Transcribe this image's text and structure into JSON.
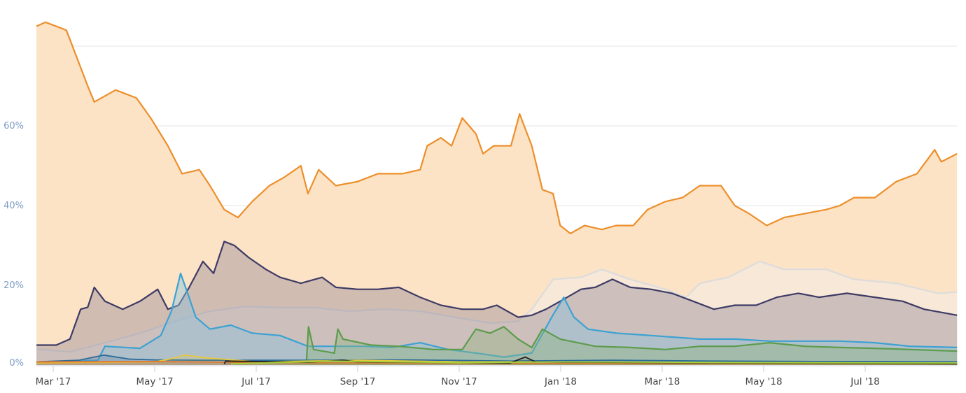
{
  "chart_data": {
    "type": "area",
    "title": "",
    "xlabel": "",
    "ylabel": "",
    "x_unit": "months since Mar 2017",
    "xlim": [
      -0.33,
      17.81
    ],
    "ylim": [
      0,
      88
    ],
    "grid": true,
    "y_ticks": [
      {
        "value": 0,
        "label": "0%"
      },
      {
        "value": 20,
        "label": "20%"
      },
      {
        "value": 40,
        "label": "40%"
      },
      {
        "value": 60,
        "label": "60%"
      },
      {
        "value": 80,
        "label": ""
      }
    ],
    "x_ticks": [
      {
        "value": 0,
        "label": "Mar '17"
      },
      {
        "value": 2,
        "label": "May '17"
      },
      {
        "value": 4,
        "label": "Jul '17"
      },
      {
        "value": 6,
        "label": "Sep '17"
      },
      {
        "value": 8,
        "label": "Nov '17"
      },
      {
        "value": 10,
        "label": "Jan '18"
      },
      {
        "value": 12,
        "label": "Mar '18"
      },
      {
        "value": 14,
        "label": "May '18"
      },
      {
        "value": 16,
        "label": "Jul '18"
      }
    ],
    "series": [
      {
        "name": "series-orange",
        "line": "#ec8f2b",
        "fill": "#fce3c6",
        "fillOpacity": 1,
        "points": [
          [
            -0.33,
            85
          ],
          [
            -0.15,
            86
          ],
          [
            0.26,
            84
          ],
          [
            0.44,
            78
          ],
          [
            0.68,
            70
          ],
          [
            0.81,
            66
          ],
          [
            1.23,
            69
          ],
          [
            1.64,
            67
          ],
          [
            1.92,
            62
          ],
          [
            2.26,
            55
          ],
          [
            2.54,
            48
          ],
          [
            2.88,
            49
          ],
          [
            3.09,
            45
          ],
          [
            3.37,
            39
          ],
          [
            3.64,
            37
          ],
          [
            3.92,
            41
          ],
          [
            4.26,
            45
          ],
          [
            4.54,
            47
          ],
          [
            4.88,
            50
          ],
          [
            5.02,
            43
          ],
          [
            5.23,
            49
          ],
          [
            5.57,
            45
          ],
          [
            5.99,
            46
          ],
          [
            6.4,
            48
          ],
          [
            6.88,
            48
          ],
          [
            7.23,
            49
          ],
          [
            7.37,
            55
          ],
          [
            7.64,
            57
          ],
          [
            7.85,
            55
          ],
          [
            8.06,
            62
          ],
          [
            8.33,
            58
          ],
          [
            8.47,
            53
          ],
          [
            8.68,
            55
          ],
          [
            9.02,
            55
          ],
          [
            9.19,
            63
          ],
          [
            9.43,
            55
          ],
          [
            9.64,
            44
          ],
          [
            9.85,
            43
          ],
          [
            9.99,
            35
          ],
          [
            10.19,
            33
          ],
          [
            10.47,
            35
          ],
          [
            10.81,
            34
          ],
          [
            11.09,
            35
          ],
          [
            11.43,
            35
          ],
          [
            11.71,
            39
          ],
          [
            12.06,
            41
          ],
          [
            12.4,
            42
          ],
          [
            12.74,
            45
          ],
          [
            13.16,
            45
          ],
          [
            13.43,
            40
          ],
          [
            13.71,
            38
          ],
          [
            14.06,
            35
          ],
          [
            14.4,
            37
          ],
          [
            14.81,
            38
          ],
          [
            15.23,
            39
          ],
          [
            15.5,
            40
          ],
          [
            15.78,
            42
          ],
          [
            16.19,
            42
          ],
          [
            16.61,
            46
          ],
          [
            17.02,
            48
          ],
          [
            17.37,
            54
          ],
          [
            17.5,
            51
          ],
          [
            17.81,
            53
          ]
        ]
      },
      {
        "name": "series-light-grey",
        "line": "#dcdcdc",
        "fill": "#f3ede6",
        "fillOpacity": 0.55,
        "points": [
          [
            -0.33,
            4
          ],
          [
            0.33,
            3.3
          ],
          [
            1.02,
            5.6
          ],
          [
            1.71,
            8
          ],
          [
            2.4,
            11
          ],
          [
            3.09,
            13.5
          ],
          [
            3.78,
            14.7
          ],
          [
            4.47,
            14.4
          ],
          [
            5.16,
            14.4
          ],
          [
            5.85,
            13.5
          ],
          [
            6.54,
            14
          ],
          [
            7.23,
            13.5
          ],
          [
            7.92,
            12
          ],
          [
            8.61,
            10.5
          ],
          [
            9.16,
            11
          ],
          [
            9.43,
            14
          ],
          [
            9.85,
            21.5
          ],
          [
            10.4,
            22
          ],
          [
            10.81,
            24
          ],
          [
            11.37,
            21.5
          ],
          [
            12.06,
            19
          ],
          [
            12.47,
            17
          ],
          [
            12.74,
            20.5
          ],
          [
            13.3,
            22
          ],
          [
            13.92,
            26
          ],
          [
            14.4,
            24
          ],
          [
            15.23,
            24
          ],
          [
            15.78,
            21.5
          ],
          [
            16.61,
            20.5
          ],
          [
            17.43,
            18
          ],
          [
            17.81,
            18.3
          ]
        ]
      },
      {
        "name": "series-navy",
        "line": "#3d3b66",
        "fill": "#7a6d85",
        "fillOpacity": 0.33,
        "points": [
          [
            -0.33,
            5
          ],
          [
            0.06,
            5
          ],
          [
            0.33,
            6.5
          ],
          [
            0.54,
            14
          ],
          [
            0.68,
            14.5
          ],
          [
            0.81,
            19.5
          ],
          [
            1.02,
            16
          ],
          [
            1.37,
            14
          ],
          [
            1.71,
            16
          ],
          [
            2.06,
            19
          ],
          [
            2.26,
            14
          ],
          [
            2.47,
            15
          ],
          [
            2.68,
            19.5
          ],
          [
            2.95,
            26
          ],
          [
            3.16,
            23
          ],
          [
            3.37,
            31
          ],
          [
            3.57,
            30
          ],
          [
            3.85,
            27
          ],
          [
            4.19,
            24
          ],
          [
            4.47,
            22
          ],
          [
            4.88,
            20.5
          ],
          [
            5.3,
            22
          ],
          [
            5.57,
            19.5
          ],
          [
            5.99,
            19
          ],
          [
            6.4,
            19
          ],
          [
            6.81,
            19.5
          ],
          [
            7.23,
            17
          ],
          [
            7.64,
            15
          ],
          [
            8.06,
            14
          ],
          [
            8.47,
            14
          ],
          [
            8.74,
            15
          ],
          [
            9.16,
            12
          ],
          [
            9.43,
            12.5
          ],
          [
            9.71,
            14
          ],
          [
            9.99,
            16
          ],
          [
            10.4,
            19
          ],
          [
            10.68,
            19.5
          ],
          [
            11.02,
            21.5
          ],
          [
            11.37,
            19.5
          ],
          [
            11.78,
            19
          ],
          [
            12.19,
            18
          ],
          [
            12.61,
            16
          ],
          [
            13.02,
            14
          ],
          [
            13.43,
            15
          ],
          [
            13.85,
            15
          ],
          [
            14.26,
            17
          ],
          [
            14.68,
            18
          ],
          [
            15.09,
            17
          ],
          [
            15.64,
            18
          ],
          [
            16.19,
            17
          ],
          [
            16.74,
            16
          ],
          [
            17.16,
            14
          ],
          [
            17.81,
            12.5
          ]
        ]
      },
      {
        "name": "series-light-blue",
        "line": "#3ba2d2",
        "fill": "#8fc2dc",
        "fillOpacity": 0.45,
        "points": [
          [
            -0.33,
            0.7
          ],
          [
            0.88,
            1.2
          ],
          [
            1.02,
            4.7
          ],
          [
            1.71,
            4.2
          ],
          [
            2.12,
            7.4
          ],
          [
            2.33,
            13.5
          ],
          [
            2.51,
            23
          ],
          [
            2.65,
            18
          ],
          [
            2.81,
            12
          ],
          [
            3.09,
            9
          ],
          [
            3.5,
            10
          ],
          [
            3.92,
            8
          ],
          [
            4.47,
            7.4
          ],
          [
            5.02,
            4.7
          ],
          [
            5.57,
            4.7
          ],
          [
            6.12,
            4.7
          ],
          [
            6.68,
            4.4
          ],
          [
            7.23,
            5.6
          ],
          [
            7.78,
            3.9
          ],
          [
            8.33,
            3
          ],
          [
            8.88,
            2
          ],
          [
            9.43,
            3
          ],
          [
            9.85,
            12.6
          ],
          [
            10.06,
            17
          ],
          [
            10.26,
            12
          ],
          [
            10.54,
            9
          ],
          [
            11.09,
            8
          ],
          [
            11.78,
            7.4
          ],
          [
            12.74,
            6.5
          ],
          [
            13.43,
            6.5
          ],
          [
            14.12,
            6
          ],
          [
            14.81,
            6
          ],
          [
            15.5,
            6
          ],
          [
            16.19,
            5.6
          ],
          [
            16.88,
            4.7
          ],
          [
            17.81,
            4.4
          ]
        ]
      },
      {
        "name": "series-green",
        "line": "#5c9c4c",
        "fill": "#8fb57e",
        "fillOpacity": 0.4,
        "points": [
          [
            4.99,
            0.9
          ],
          [
            5.03,
            9.6
          ],
          [
            5.13,
            3.9
          ],
          [
            5.54,
            3
          ],
          [
            5.61,
            9
          ],
          [
            5.71,
            6.5
          ],
          [
            6.26,
            5
          ],
          [
            6.81,
            4.7
          ],
          [
            7.5,
            3.9
          ],
          [
            8.06,
            3.9
          ],
          [
            8.33,
            9
          ],
          [
            8.61,
            8
          ],
          [
            8.88,
            9.6
          ],
          [
            9.16,
            6.5
          ],
          [
            9.43,
            4.4
          ],
          [
            9.64,
            9
          ],
          [
            9.99,
            6.5
          ],
          [
            10.68,
            4.7
          ],
          [
            11.37,
            4.4
          ],
          [
            12.06,
            3.9
          ],
          [
            12.74,
            4.7
          ],
          [
            13.43,
            4.7
          ],
          [
            14.12,
            5.6
          ],
          [
            14.81,
            4.7
          ],
          [
            15.5,
            4.4
          ],
          [
            16.19,
            4.2
          ],
          [
            16.88,
            3.9
          ],
          [
            17.81,
            3.5
          ]
        ]
      },
      {
        "name": "series-dark-blue",
        "line": "#2a6a9a",
        "fill": "#6a8aa8",
        "fillOpacity": 0.35,
        "points": [
          [
            -0.33,
            0.8
          ],
          [
            0.5,
            1.2
          ],
          [
            1.0,
            2.5
          ],
          [
            1.5,
            1.5
          ],
          [
            2.0,
            1.3
          ],
          [
            3.0,
            1.2
          ],
          [
            5.0,
            1.2
          ],
          [
            7.0,
            1.3
          ],
          [
            9.0,
            1.0
          ],
          [
            11.0,
            1.2
          ],
          [
            13.0,
            1.0
          ],
          [
            15.0,
            0.9
          ],
          [
            17.81,
            0.8
          ]
        ]
      },
      {
        "name": "series-yellow",
        "line": "#e6c93a",
        "fill": "#e6c93a",
        "fillOpacity": 0.15,
        "points": [
          [
            -0.33,
            0.5
          ],
          [
            2.0,
            0.8
          ],
          [
            2.3,
            1.5
          ],
          [
            2.6,
            2.5
          ],
          [
            3.0,
            1.8
          ],
          [
            4.0,
            0.8
          ],
          [
            6.0,
            1.2
          ],
          [
            8.0,
            0.8
          ],
          [
            10.0,
            0.8
          ],
          [
            12.0,
            0.6
          ],
          [
            17.81,
            0.5
          ]
        ]
      },
      {
        "name": "series-orange-small",
        "line": "#e07a30",
        "fill": "#e07a30",
        "fillOpacity": 0.3,
        "points": [
          [
            -0.33,
            0.8
          ],
          [
            2.0,
            0.9
          ],
          [
            4.0,
            0.6
          ],
          [
            10.0,
            0.4
          ],
          [
            17.81,
            0.3
          ]
        ]
      },
      {
        "name": "series-black",
        "line": "#222222",
        "fill": "#444444",
        "fillOpacity": 0.1,
        "points": [
          [
            3.37,
            0.3
          ],
          [
            3.4,
            1.0
          ],
          [
            5.0,
            0.7
          ],
          [
            5.7,
            1.2
          ],
          [
            6.0,
            0.8
          ],
          [
            9.0,
            0.5
          ],
          [
            9.3,
            2.0
          ],
          [
            9.5,
            0.8
          ],
          [
            12.0,
            0.6
          ],
          [
            17.81,
            0.3
          ]
        ]
      },
      {
        "name": "series-lime",
        "line": "#a5d13a",
        "fill": "#a5d13a",
        "fillOpacity": 0.15,
        "points": [
          [
            3.5,
            0.3
          ],
          [
            5.5,
            1.0
          ],
          [
            8.0,
            0.6
          ],
          [
            10.0,
            0.8
          ],
          [
            14.0,
            0.6
          ],
          [
            17.81,
            0.5
          ]
        ]
      }
    ]
  }
}
